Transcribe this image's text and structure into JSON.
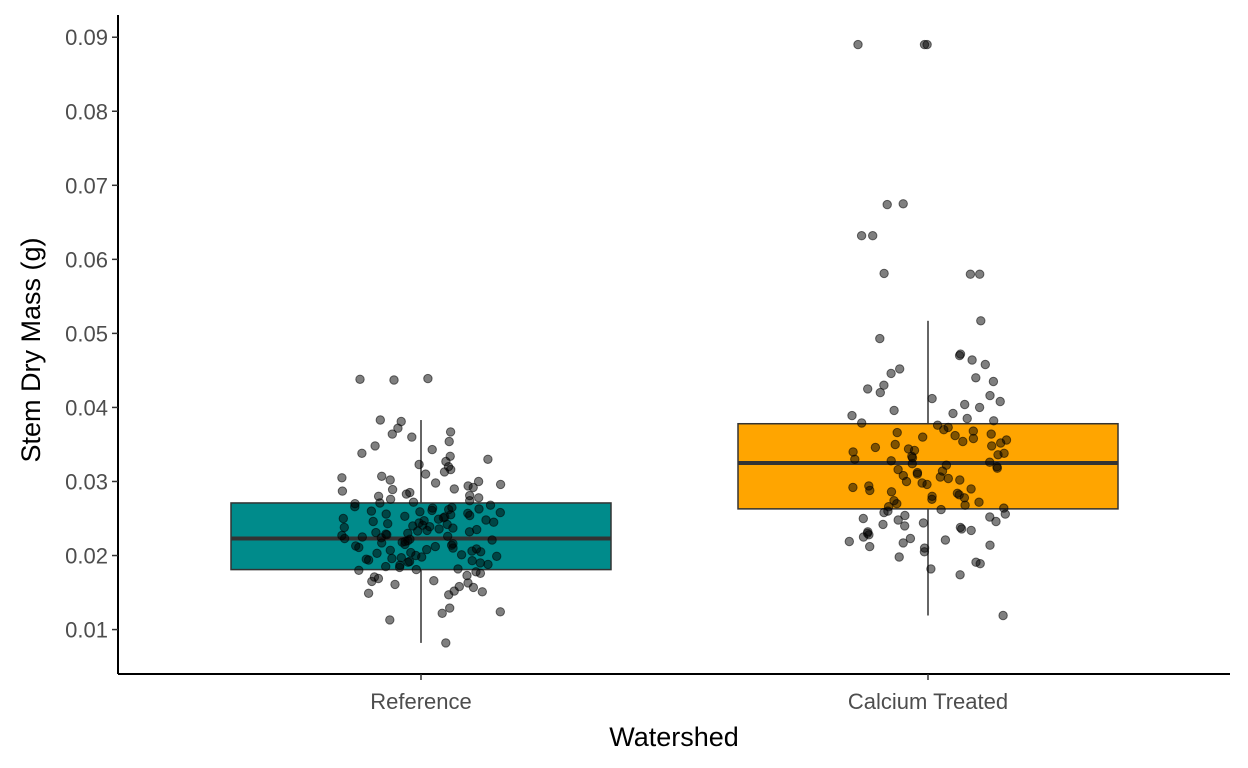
{
  "chart_data": {
    "type": "boxplot",
    "xlabel": "Watershed",
    "ylabel": "Stem Dry Mass (g)",
    "ylim": [
      0.004,
      0.093
    ],
    "yticks": [
      0.01,
      0.02,
      0.03,
      0.04,
      0.05,
      0.06,
      0.07,
      0.08,
      0.09
    ],
    "ytick_labels": [
      "0.01",
      "0.02",
      "0.03",
      "0.04",
      "0.05",
      "0.06",
      "0.07",
      "0.08",
      "0.09"
    ],
    "categories": [
      "Reference",
      "Calcium Treated"
    ],
    "colors": {
      "Reference": "#008b8b",
      "Calcium Treated": "#ffa500",
      "points": "#000000"
    },
    "grid": false,
    "legend": "none",
    "boxes": [
      {
        "category": "Reference",
        "whisker_low": 0.0082,
        "q1": 0.0181,
        "median": 0.0223,
        "q3": 0.0271,
        "whisker_high": 0.0383
      },
      {
        "category": "Calcium Treated",
        "whisker_low": 0.0119,
        "q1": 0.0263,
        "median": 0.0325,
        "q3": 0.0378,
        "whisker_high": 0.0517
      }
    ],
    "points": [
      {
        "category": "Reference",
        "values": [
          0.0082,
          0.0113,
          0.0122,
          0.0124,
          0.0129,
          0.0147,
          0.0149,
          0.0151,
          0.0152,
          0.0157,
          0.0158,
          0.0161,
          0.0163,
          0.0165,
          0.0166,
          0.0169,
          0.0171,
          0.0173,
          0.0176,
          0.0178,
          0.018,
          0.0181,
          0.0182,
          0.0184,
          0.0185,
          0.0187,
          0.0188,
          0.019,
          0.0191,
          0.0192,
          0.0193,
          0.0194,
          0.0195,
          0.0196,
          0.0197,
          0.0198,
          0.0199,
          0.02,
          0.0201,
          0.0203,
          0.0204,
          0.0205,
          0.0206,
          0.0207,
          0.0208,
          0.0209,
          0.021,
          0.0211,
          0.0212,
          0.0213,
          0.0214,
          0.0215,
          0.0216,
          0.0217,
          0.0218,
          0.0219,
          0.022,
          0.0221,
          0.0222,
          0.0223,
          0.0224,
          0.0225,
          0.0226,
          0.0227,
          0.0228,
          0.0229,
          0.023,
          0.0231,
          0.0232,
          0.0233,
          0.0234,
          0.0235,
          0.0236,
          0.0237,
          0.0238,
          0.0239,
          0.024,
          0.0241,
          0.0242,
          0.0243,
          0.0244,
          0.0245,
          0.0246,
          0.0247,
          0.0248,
          0.0249,
          0.025,
          0.0251,
          0.0252,
          0.0253,
          0.0254,
          0.0255,
          0.0256,
          0.0257,
          0.0258,
          0.0259,
          0.026,
          0.0261,
          0.0262,
          0.0263,
          0.0264,
          0.0265,
          0.0266,
          0.0268,
          0.027,
          0.0271,
          0.0272,
          0.0274,
          0.0276,
          0.0278,
          0.028,
          0.0281,
          0.0283,
          0.0285,
          0.0287,
          0.0289,
          0.029,
          0.0292,
          0.0294,
          0.0296,
          0.0298,
          0.03,
          0.0302,
          0.0305,
          0.0307,
          0.031,
          0.0313,
          0.0316,
          0.032,
          0.0323,
          0.0327,
          0.033,
          0.0334,
          0.0338,
          0.0343,
          0.0348,
          0.0354,
          0.036,
          0.0364,
          0.0367,
          0.0372,
          0.0381,
          0.0383,
          0.0437,
          0.0438,
          0.0439
        ]
      },
      {
        "category": "Calcium Treated",
        "values": [
          0.0119,
          0.0174,
          0.0182,
          0.0189,
          0.0191,
          0.0198,
          0.0205,
          0.021,
          0.0212,
          0.0214,
          0.0217,
          0.0219,
          0.0221,
          0.0223,
          0.0225,
          0.0228,
          0.023,
          0.0232,
          0.0234,
          0.0236,
          0.0238,
          0.024,
          0.0242,
          0.0244,
          0.0246,
          0.0248,
          0.025,
          0.0252,
          0.0254,
          0.0256,
          0.0258,
          0.026,
          0.0262,
          0.0264,
          0.0266,
          0.0268,
          0.027,
          0.0272,
          0.0274,
          0.0276,
          0.0278,
          0.028,
          0.0282,
          0.0284,
          0.0286,
          0.0288,
          0.029,
          0.0292,
          0.0294,
          0.0296,
          0.0298,
          0.03,
          0.0302,
          0.0304,
          0.0306,
          0.0308,
          0.031,
          0.0312,
          0.0314,
          0.0316,
          0.0318,
          0.032,
          0.0322,
          0.0324,
          0.0326,
          0.0328,
          0.033,
          0.0332,
          0.0334,
          0.0336,
          0.0338,
          0.034,
          0.0342,
          0.0344,
          0.0346,
          0.0348,
          0.035,
          0.0352,
          0.0354,
          0.0356,
          0.0358,
          0.036,
          0.0362,
          0.0364,
          0.0366,
          0.0368,
          0.037,
          0.0373,
          0.0376,
          0.0379,
          0.0382,
          0.0385,
          0.0389,
          0.0392,
          0.0396,
          0.04,
          0.0404,
          0.0408,
          0.0412,
          0.0416,
          0.042,
          0.0425,
          0.043,
          0.0435,
          0.044,
          0.0446,
          0.0452,
          0.0458,
          0.0464,
          0.047,
          0.0472,
          0.0493,
          0.0517,
          0.058,
          0.058,
          0.0581,
          0.0632,
          0.0632,
          0.0674,
          0.0675,
          0.089,
          0.089,
          0.089
        ]
      }
    ]
  }
}
